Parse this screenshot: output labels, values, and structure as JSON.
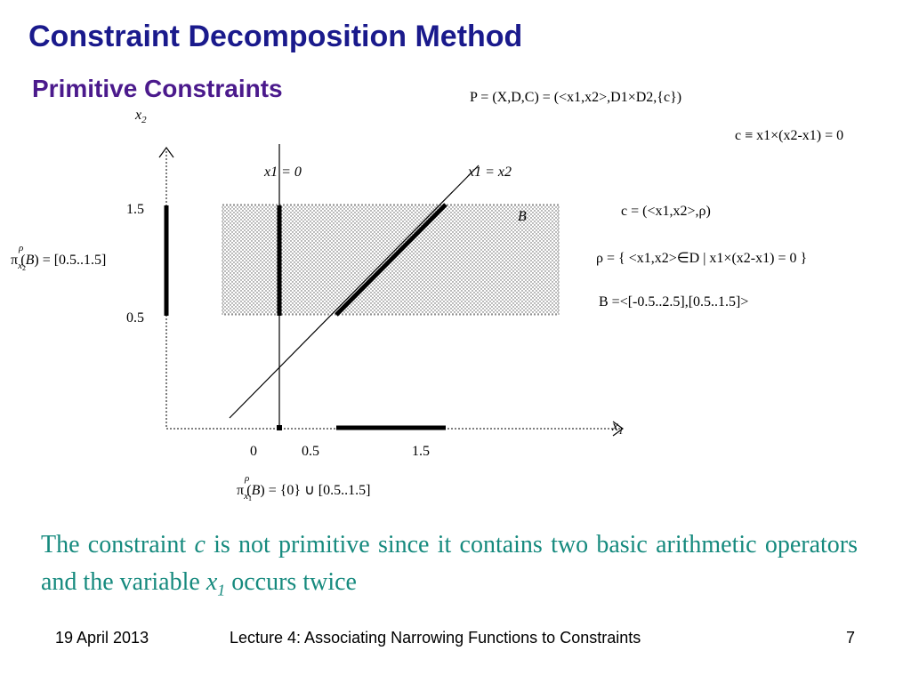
{
  "slide": {
    "title": "Constraint Decomposition Method",
    "subtitle": "Primitive Constraints"
  },
  "diagram": {
    "x_axis_label": "x",
    "x_axis_sub": "1",
    "y_axis_label": "x",
    "y_axis_sub": "2",
    "x_ticks": [
      "0",
      "0.5",
      "1.5"
    ],
    "y_ticks": [
      "1.5",
      "0.5"
    ],
    "line_vertical_label": "x1 = 0",
    "line_diagonal_label": "x1 = x2",
    "box_label": "B",
    "proj_y_label": "π x2 ρ (B) = [0.5..1.5]",
    "proj_y_value": "[0.5..1.5]",
    "proj_x_label": "π x1 ρ (B) = {0} ∪ [0.5..1.5]",
    "proj_x_value": "{0} ∪ [0.5..1.5]",
    "box_x_range": [
      -0.5,
      2.5
    ],
    "box_y_range": [
      0.5,
      1.5
    ]
  },
  "formulas": {
    "problem": "P = (X,D,C) = (<x1,x2>,D1×D2,{c})",
    "constraint": "c ≡ x1×(x2-x1) = 0",
    "constraint_pair": "c = (<x1,x2>,ρ)",
    "rho": "ρ = { <x1,x2>∈D | x1×(x2-x1) = 0 }",
    "box": "B =<[-0.5..2.5],[0.5..1.5]>"
  },
  "explanation": {
    "text_1": "The constraint",
    "text_c": "c",
    "text_2": "is not primitive since it contains two basic arithmetic operators and the variable",
    "text_x": "x",
    "text_x_sub": "1",
    "text_3": "occurs twice"
  },
  "footer": {
    "date": "19 April 2013",
    "lecture": "Lecture 4: Associating Narrowing Functions to Constraints",
    "page": "7"
  }
}
